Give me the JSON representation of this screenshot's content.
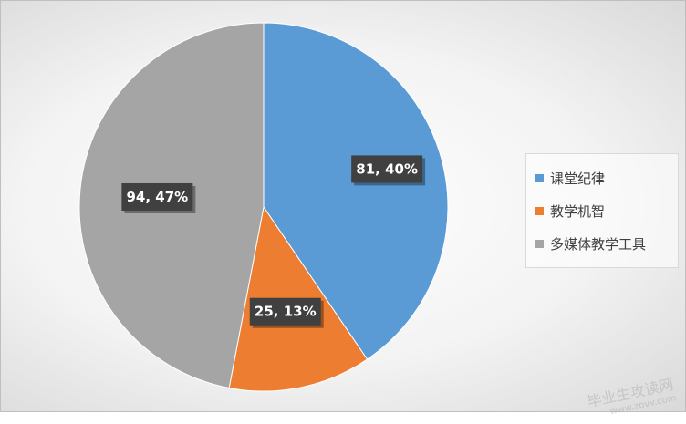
{
  "chart_data": {
    "type": "pie",
    "categories": [
      "课堂纪律",
      "教学机智",
      "多媒体教学工具"
    ],
    "values": [
      81,
      25,
      94
    ],
    "percent_labels": [
      "40%",
      "13%",
      "47%"
    ],
    "data_labels": [
      "81, 40%",
      "25, 13%",
      "94, 47%"
    ],
    "colors": [
      "#5b9bd5",
      "#ed7d31",
      "#a5a5a5"
    ],
    "legend_position": "right",
    "start_angle": "12 o'clock, clockwise"
  },
  "watermark": {
    "text": "毕业生攻读网",
    "sub": "www.zbvv.com"
  }
}
